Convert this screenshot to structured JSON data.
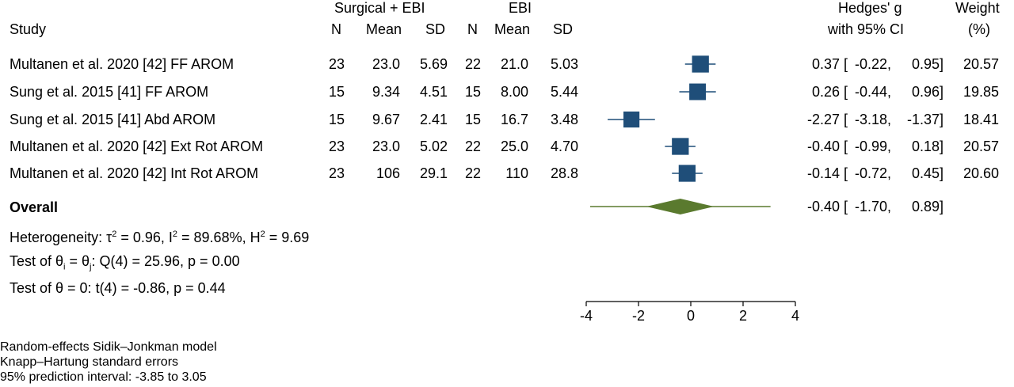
{
  "header": {
    "group1": "Surgical + EBI",
    "group2": "EBI",
    "study": "Study",
    "n1": "N",
    "mean1": "Mean",
    "sd1": "SD",
    "n2": "N",
    "mean2": "Mean",
    "sd2": "SD",
    "es_line1": "Hedges' g",
    "es_line2": "with 95% CI",
    "weight_line1": "Weight",
    "weight_line2": "(%)"
  },
  "rows": [
    {
      "study": "Multanen et al. 2020 [42] FF AROM",
      "n1": "23",
      "mean1": "23.0",
      "sd1": "5.69",
      "n2": "22",
      "mean2": "21.0",
      "sd2": "5.03",
      "es": "0.37",
      "lo": "-0.22,",
      "hi": "0.95]",
      "weight": "20.57"
    },
    {
      "study": "Sung et al. 2015 [41] FF AROM",
      "n1": "15",
      "mean1": "9.34",
      "sd1": "4.51",
      "n2": "15",
      "mean2": "8.00",
      "sd2": "5.44",
      "es": "0.26",
      "lo": "-0.44,",
      "hi": "0.96]",
      "weight": "19.85"
    },
    {
      "study": "Sung et al. 2015 [41] Abd AROM",
      "n1": "15",
      "mean1": "9.67",
      "sd1": "2.41",
      "n2": "15",
      "mean2": "16.7",
      "sd2": "3.48",
      "es": "-2.27",
      "lo": "-3.18,",
      "hi": "-1.37]",
      "weight": "18.41"
    },
    {
      "study": "Multanen et al. 2020 [42] Ext Rot AROM",
      "n1": "23",
      "mean1": "23.0",
      "sd1": "5.02",
      "n2": "22",
      "mean2": "25.0",
      "sd2": "4.70",
      "es": "-0.40",
      "lo": "-0.99,",
      "hi": "0.18]",
      "weight": "20.57"
    },
    {
      "study": "Multanen et al. 2020 [42] Int Rot AROM",
      "n1": "23",
      "mean1": "106",
      "sd1": "29.1",
      "n2": "22",
      "mean2": "110",
      "sd2": "28.8",
      "es": "-0.14",
      "lo": "-0.72,",
      "hi": "0.45]",
      "weight": "20.60"
    }
  ],
  "overall": {
    "label": "Overall",
    "es": "-0.40",
    "lo": "-1.70,",
    "hi": "0.89]"
  },
  "stats": {
    "het_prefix": "Heterogeneity: ",
    "tau": "τ",
    "tau_eq": " = 0.96, I",
    "i2_eq": " = 89.68%, H",
    "h2_eq": " = 9.69",
    "sup2": "2",
    "test1_prefix": "Test of ",
    "theta": "θ",
    "sub_i": "i",
    "sub_j": "j",
    "test1_mid": " = ",
    "test1_rest": ": Q(4) = 25.96, p = 0.00",
    "test2": "Test of θ = 0: t(4) = -0.86, p = 0.44"
  },
  "ci_open": "[",
  "footnotes": [
    "Random-effects Sidik–Jonkman model",
    "Knapp–Hartung standard errors",
    "95% prediction interval: -3.85 to 3.05"
  ],
  "colors": {
    "marker": "#1f4e79",
    "diamond": "#5a7a2e"
  },
  "chart_data": {
    "type": "forest",
    "xlim": [
      -4,
      4
    ],
    "xticks": [
      "-4",
      "-2",
      "0",
      "2",
      "4"
    ],
    "points": [
      {
        "es": 0.37,
        "lo": -0.22,
        "hi": 0.95,
        "weight": 20.57
      },
      {
        "es": 0.26,
        "lo": -0.44,
        "hi": 0.96,
        "weight": 19.85
      },
      {
        "es": -2.27,
        "lo": -3.18,
        "hi": -1.37,
        "weight": 18.41
      },
      {
        "es": -0.4,
        "lo": -0.99,
        "hi": 0.18,
        "weight": 20.57
      },
      {
        "es": -0.14,
        "lo": -0.72,
        "hi": 0.45,
        "weight": 20.6
      }
    ],
    "overall": {
      "es": -0.4,
      "lo": -1.7,
      "hi": 0.89
    },
    "prediction_interval": [
      -3.85,
      3.05
    ]
  }
}
